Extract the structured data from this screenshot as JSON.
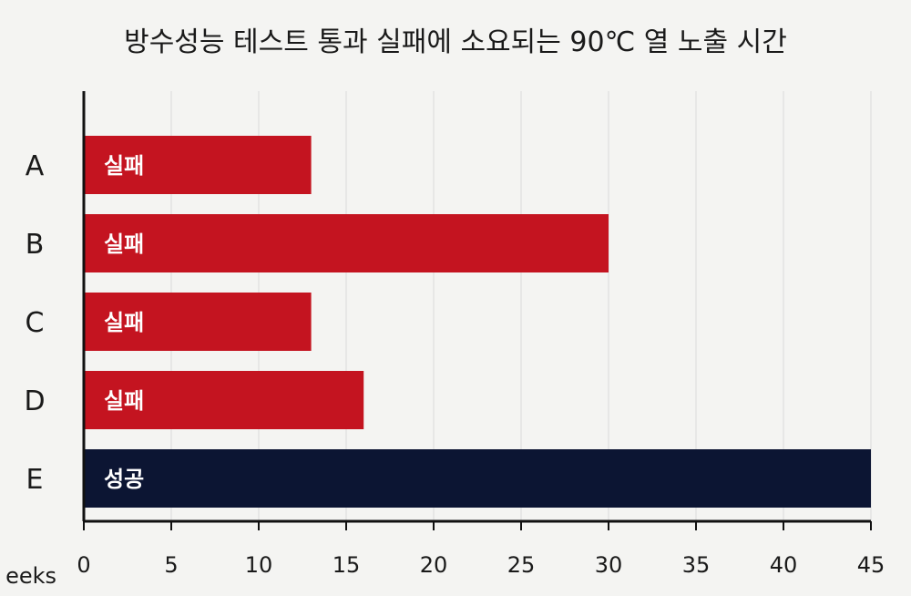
{
  "chart_data": {
    "type": "bar",
    "orientation": "horizontal",
    "title": "방수성능 테스트 통과 실패에 소요되는 90℃ 열 노출 시간",
    "xlabel": "eeks",
    "ylabel": "",
    "categories": [
      "A",
      "B",
      "C",
      "D",
      "E"
    ],
    "values": [
      13,
      30,
      13,
      16,
      45
    ],
    "bar_labels": [
      "실패",
      "실패",
      "실패",
      "실패",
      "성공"
    ],
    "bar_colors": [
      "#c41420",
      "#c41420",
      "#c41420",
      "#c41420",
      "#0c1533"
    ],
    "xlim": [
      0,
      45
    ],
    "xticks": [
      0,
      5,
      10,
      15,
      20,
      25,
      30,
      35,
      40,
      45
    ],
    "grid": true
  }
}
